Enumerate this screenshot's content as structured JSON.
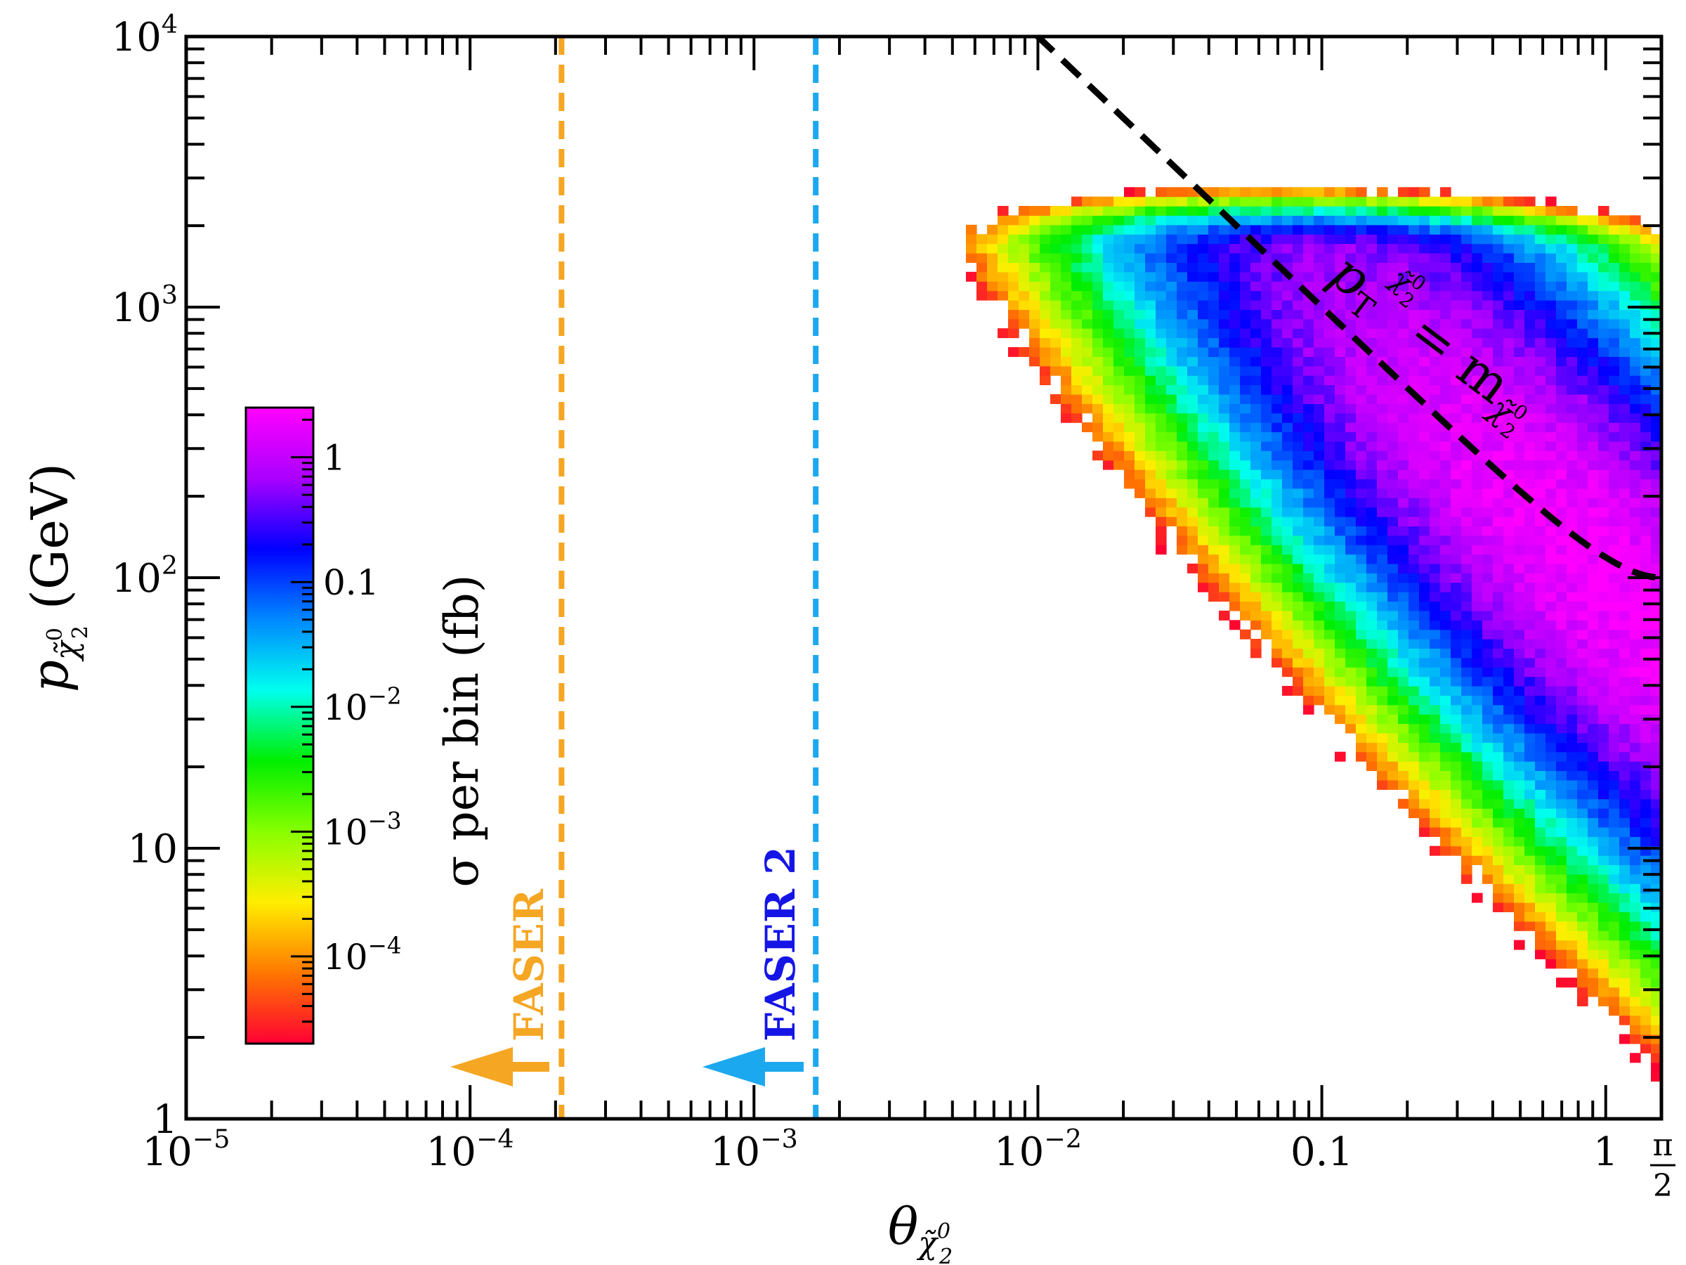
{
  "chart_data": {
    "type": "heatmap",
    "title": "",
    "xlabel": {
      "base": "θ",
      "subscript": "χ̃",
      "sub_sup": "0",
      "sub_sub": "2"
    },
    "ylabel": {
      "base": "p",
      "subscript": "χ̃",
      "sub_sup": "0",
      "sub_sub": "2",
      "suffix": " (GeV)"
    },
    "x_scale": "log",
    "y_scale": "log",
    "xlim": [
      1e-05,
      1.5708
    ],
    "ylim": [
      1,
      10000
    ],
    "x_ticks": [
      {
        "value": 1e-05,
        "base": "10",
        "exp": "−5"
      },
      {
        "value": 0.0001,
        "base": "10",
        "exp": "−4"
      },
      {
        "value": 0.001,
        "base": "10",
        "exp": "−3"
      },
      {
        "value": 0.01,
        "base": "10",
        "exp": "−2"
      },
      {
        "value": 0.1,
        "base": "0.1",
        "exp": ""
      },
      {
        "value": 1,
        "base": "1",
        "exp": ""
      }
    ],
    "x_extra_tick": {
      "value": 1.5708,
      "numerator": "π",
      "denominator": "2"
    },
    "y_ticks": [
      {
        "value": 1,
        "base": "1",
        "exp": ""
      },
      {
        "value": 10,
        "base": "10",
        "exp": ""
      },
      {
        "value": 100,
        "base": "10",
        "exp": "2"
      },
      {
        "value": 1000,
        "base": "10",
        "exp": "3"
      },
      {
        "value": 10000,
        "base": "10",
        "exp": "4"
      }
    ],
    "colorbar": {
      "label": "σ per bin (fb)",
      "scale": "log",
      "range": [
        2e-05,
        2.5
      ],
      "ticks": [
        {
          "value": 1,
          "base": "1",
          "exp": ""
        },
        {
          "value": 0.1,
          "base": "0.1",
          "exp": ""
        },
        {
          "value": 0.01,
          "base": "10",
          "exp": "−2"
        },
        {
          "value": 0.001,
          "base": "10",
          "exp": "−3"
        },
        {
          "value": 0.0001,
          "base": "10",
          "exp": "−4"
        }
      ],
      "colors": [
        "#ff0033",
        "#ff7700",
        "#ffee00",
        "#88ff00",
        "#00ee00",
        "#00ffee",
        "#0088ff",
        "#0000ff",
        "#aa00ff",
        "#ff00ff"
      ]
    },
    "density_model": {
      "description": "cross section per bin concentrated along p_T = p·θ ~ 100 GeV ridge, peaking near θ≈1, p≈60 GeV",
      "peak_value": 2.2,
      "ridge_pt_gev": 100,
      "ridge_width_decades": 0.52,
      "theta_peak": 1.0,
      "max_momentum_gev": 4500
    },
    "lines": [
      {
        "name": "FASER",
        "theta": 0.00021,
        "color": "#f5a623",
        "style": "dashed",
        "label_color": "#f5a623",
        "arrow_color": "#f5a623"
      },
      {
        "name": "FASER 2",
        "theta": 0.00165,
        "color": "#1ca8ef",
        "style": "dashed",
        "label_color": "#1515e6",
        "arrow_color": "#1ca8ef"
      },
      {
        "name": "pT = m",
        "relation": "p·sin(θ) = 100 GeV",
        "mass_gev": 100,
        "color": "#000000",
        "style": "dashed"
      }
    ],
    "annotations": [
      {
        "text": "FASER",
        "target": "FASER line"
      },
      {
        "text": "FASER 2",
        "target": "FASER 2 line"
      },
      {
        "text_parts": [
          "p",
          "T",
          "χ̃",
          "0",
          "2",
          " = m",
          "χ̃",
          "0",
          "2"
        ],
        "meaning": "p_T of chi2 equals m of chi2"
      }
    ]
  }
}
